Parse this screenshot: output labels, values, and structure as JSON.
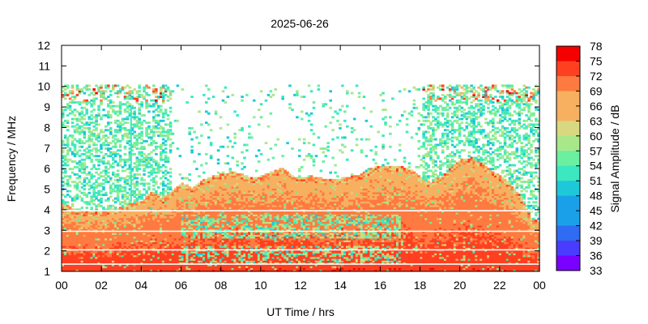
{
  "chart_data": {
    "type": "heatmap",
    "title": "2025-06-26",
    "xlabel": "UT Time / hrs",
    "ylabel": "Frequency / MHz",
    "colorbar_label": "Signal Amplitude / dB",
    "x_ticks": [
      "00",
      "02",
      "04",
      "06",
      "08",
      "10",
      "12",
      "14",
      "16",
      "18",
      "20",
      "22",
      "00"
    ],
    "xlim": [
      0,
      24
    ],
    "y_ticks": [
      "1",
      "2",
      "3",
      "4",
      "5",
      "6",
      "7",
      "8",
      "9",
      "10",
      "11",
      "12"
    ],
    "ylim": [
      1,
      12
    ],
    "colorbar_ticks": [
      "78",
      "75",
      "72",
      "69",
      "66",
      "63",
      "60",
      "57",
      "54",
      "51",
      "48",
      "45",
      "42",
      "39",
      "36",
      "33"
    ],
    "zlim": [
      33,
      78
    ],
    "colormap": [
      "#7a00ff",
      "#4a3cff",
      "#2f6cf2",
      "#1aa0e8",
      "#1ec8d8",
      "#3be8c0",
      "#6af0a0",
      "#a8e88a",
      "#d8d880",
      "#f6b060",
      "#ff7a40",
      "#ff4020",
      "#f40000"
    ],
    "series": [
      {
        "x": [
          0,
          0.5,
          1,
          1.5,
          2,
          2.5,
          3,
          3.5,
          4,
          4.5,
          5,
          5.5,
          6,
          6.5,
          7,
          7.5,
          8,
          8.5,
          9,
          9.5,
          10,
          10.5,
          11,
          11.5,
          12,
          12.5,
          13,
          13.5,
          14,
          14.5,
          15,
          15.5,
          16,
          16.5,
          17,
          17.5,
          18,
          18.5,
          19,
          19.5,
          20,
          20.5,
          21,
          21.5,
          22,
          22.5,
          23,
          23.5,
          24
        ],
        "y": [
          4.3,
          4.0,
          3.9,
          3.9,
          3.9,
          4.0,
          4.1,
          4.3,
          4.4,
          4.9,
          4.5,
          4.9,
          5.3,
          5.0,
          5.4,
          5.6,
          5.7,
          5.8,
          5.7,
          5.5,
          5.6,
          5.8,
          6.0,
          5.6,
          5.5,
          5.6,
          5.5,
          5.4,
          5.5,
          5.6,
          5.7,
          6.0,
          6.1,
          6.1,
          6.1,
          5.9,
          5.5,
          5.3,
          5.6,
          6.0,
          6.4,
          6.5,
          6.3,
          5.9,
          5.6,
          5.2,
          4.6,
          3.6,
          3.3
        ]
      }
    ],
    "grid": false
  }
}
